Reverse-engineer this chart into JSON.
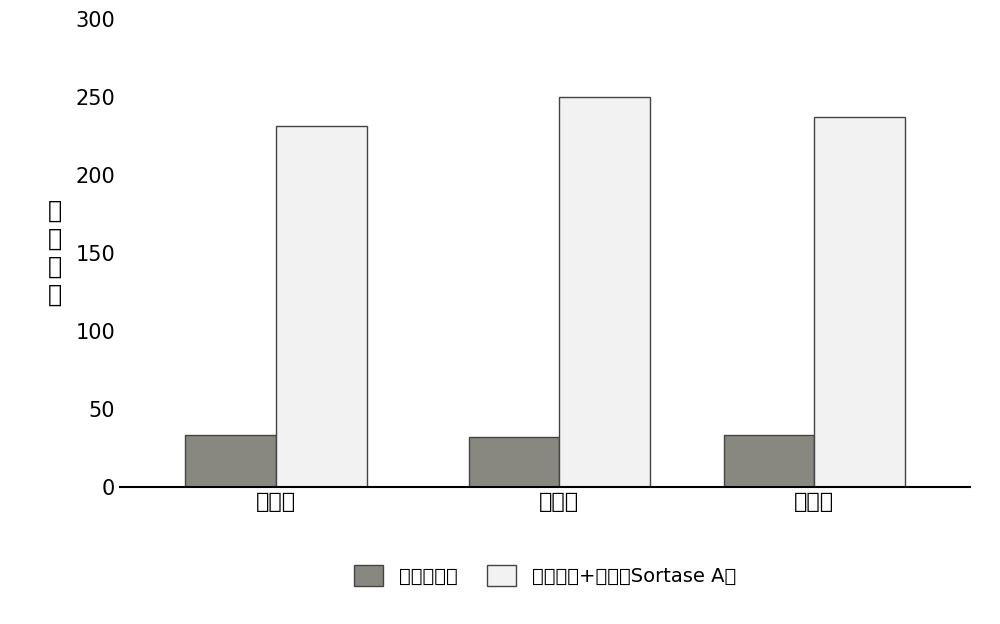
{
  "groups": [
    "第一组",
    "第二组",
    "第三组"
  ],
  "series1_label": "底物蛋白组",
  "series2_label": "底物蛋白+分选酶Sortase A组",
  "series1_values": [
    33,
    32,
    33
  ],
  "series2_values": [
    231,
    250,
    237
  ],
  "series1_color": "#888880",
  "series2_color": "#f2f2f2",
  "series1_edgecolor": "#444444",
  "series2_edgecolor": "#444444",
  "ylabel_chars": [
    "荧",
    "光",
    "强",
    "度"
  ],
  "ylim": [
    0,
    300
  ],
  "yticks": [
    0,
    50,
    100,
    150,
    200,
    250,
    300
  ],
  "bar_width": 0.32,
  "figsize": [
    10.0,
    6.24
  ],
  "dpi": 100,
  "background_color": "#ffffff",
  "legend_fontsize": 14,
  "tick_fontsize": 15,
  "ylabel_fontsize": 17,
  "xtick_fontsize": 16
}
